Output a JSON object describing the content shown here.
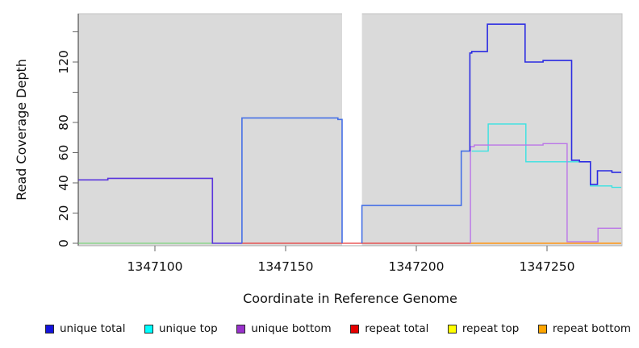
{
  "figure": {
    "xlabel": "Coordinate in Reference Genome",
    "ylabel": "Read Coverage Depth"
  },
  "legend": {
    "items": [
      {
        "label": "unique total",
        "color": "#1414dc"
      },
      {
        "label": "unique top",
        "color": "#00ffff"
      },
      {
        "label": "unique bottom",
        "color": "#9932cc"
      },
      {
        "label": "repeat total",
        "color": "#e60000"
      },
      {
        "label": "repeat top",
        "color": "#ffff00"
      },
      {
        "label": "repeat bottom",
        "color": "#ffa500"
      }
    ]
  },
  "chart_data": {
    "type": "line",
    "subtype": "step-coverage",
    "title": "",
    "xlabel": "Coordinate in Reference Genome",
    "ylabel": "Read Coverage Depth",
    "xlim": [
      1347070.7,
      1347278.4
    ],
    "ylim": [
      0,
      152
    ],
    "grid": false,
    "legend_position": "bottom",
    "panel_background": "#dadada",
    "no_data_region": {
      "from": 1347171.6,
      "to": 1347179.2
    },
    "x_ticks": [
      {
        "value": 1347100,
        "label": "1347100"
      },
      {
        "value": 1347150,
        "label": "1347150"
      },
      {
        "value": 1347200,
        "label": "1347200"
      },
      {
        "value": 1347250,
        "label": "1347250"
      }
    ],
    "y_ticks": [
      {
        "value": 0,
        "label": "0"
      },
      {
        "value": 20,
        "label": "20"
      },
      {
        "value": 40,
        "label": "40"
      },
      {
        "value": 60,
        "label": "60"
      },
      {
        "value": 80,
        "label": "80"
      },
      {
        "value": 100,
        "label": ""
      },
      {
        "value": 120,
        "label": "120"
      },
      {
        "value": 140,
        "label": ""
      }
    ],
    "series": [
      {
        "name": "unique-top-and-repeat-top-zero-line",
        "color": "#7ed47e",
        "width": 1.3,
        "runs": [
          [
            1347070.7,
            0
          ]
        ],
        "end": 1347122
      },
      {
        "name": "repeat-total-zero-line",
        "color": "#e63939",
        "width": 1.3,
        "runs": [
          [
            1347133.3,
            0
          ]
        ],
        "end": 1347220.7
      },
      {
        "name": "repeat-bottom-zero-line",
        "color": "#ff9614",
        "width": 1.5,
        "runs": [
          [
            1347220.7,
            0
          ]
        ],
        "end": 1347278.4
      },
      {
        "name": "unique-top",
        "color": "#38e2e2",
        "width": 1.4,
        "runs": [
          [
            1347221.2,
            61
          ],
          [
            1347227.5,
            79
          ],
          [
            1347241.9,
            54
          ],
          [
            1347266.6,
            38
          ],
          [
            1347274.8,
            37
          ]
        ],
        "end": 1347278.4
      },
      {
        "name": "unique-bottom",
        "color": "#bb75e8",
        "width": 1.4,
        "start_at_zero": true,
        "runs": [
          [
            1347220.7,
            64
          ],
          [
            1347222.2,
            65
          ],
          [
            1347248.5,
            66
          ],
          [
            1347257.7,
            1
          ],
          [
            1347269.5,
            10
          ]
        ],
        "end": 1347278.4
      },
      {
        "name": "unique-total-segment-1",
        "color": "#5a35dd",
        "width": 1.6,
        "runs": [
          [
            1347070.7,
            42
          ],
          [
            1347082,
            43
          ],
          [
            1347122,
            0
          ]
        ],
        "end": 1347133.3
      },
      {
        "name": "unique-total-segment-2",
        "color": "#4570e6",
        "width": 1.6,
        "start_at_zero": true,
        "end_at_zero": true,
        "runs": [
          [
            1347133.3,
            83
          ],
          [
            1347170,
            82
          ]
        ],
        "end": 1347171.6
      },
      {
        "name": "unique-total-segment-3",
        "color": "#4570e6",
        "width": 1.6,
        "start_at_zero": true,
        "runs": [
          [
            1347179.2,
            25
          ],
          [
            1347217.2,
            61
          ]
        ],
        "end": 1347220.5
      },
      {
        "name": "unique-total-segment-4",
        "color": "#2b2be2",
        "width": 1.6,
        "runs": [
          [
            1347220.5,
            61
          ],
          [
            1347220.5,
            126
          ],
          [
            1347221.2,
            127
          ],
          [
            1347227.2,
            145
          ],
          [
            1347241.6,
            120
          ],
          [
            1347248.5,
            121
          ],
          [
            1347259.4,
            55
          ],
          [
            1347262.4,
            54
          ],
          [
            1347266.6,
            39
          ],
          [
            1347269.3,
            48
          ],
          [
            1347274.8,
            47
          ]
        ],
        "end": 1347278.4
      }
    ]
  }
}
